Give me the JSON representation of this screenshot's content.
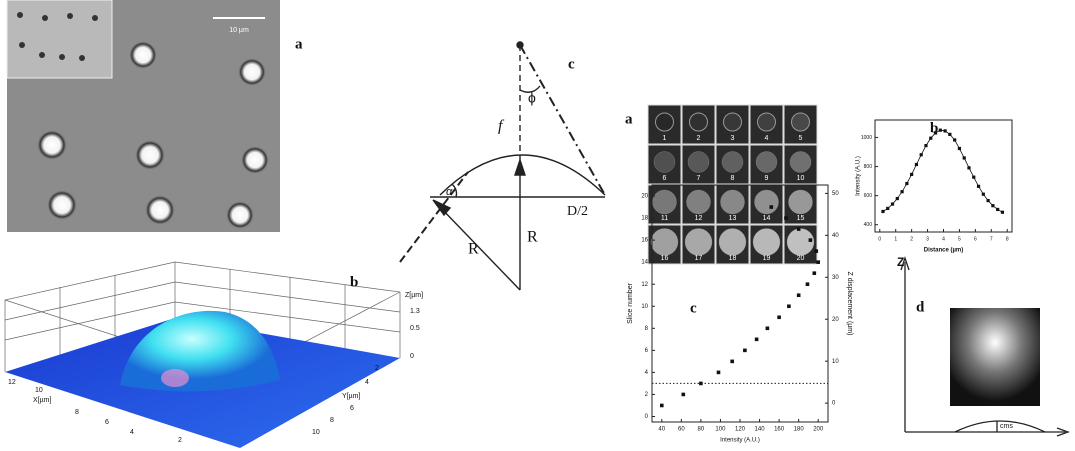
{
  "micrograph": {
    "label": "a",
    "scale_bar": "10 µm"
  },
  "surface_plot": {
    "label": "b",
    "z_axis": "Z[µm]",
    "z_ticks": [
      "1.3",
      "0.5",
      "0"
    ],
    "x_axis": "X[µm]",
    "x_ticks": [
      "12",
      "10",
      "8",
      "6",
      "4",
      "2"
    ],
    "y_axis": "Y[µm]",
    "y_ticks": [
      "2",
      "4",
      "6",
      "8",
      "10"
    ]
  },
  "geometry": {
    "label": "c",
    "phi": "ϕ",
    "focal": "f",
    "alpha": "α",
    "half_diameter": "D/2",
    "radius_left": "R",
    "radius_center": "R"
  },
  "slices": {
    "label": "a",
    "numbers": [
      "1",
      "2",
      "3",
      "4",
      "5",
      "6",
      "7",
      "8",
      "9",
      "10",
      "11",
      "12",
      "13",
      "14",
      "15",
      "16",
      "17",
      "18",
      "19",
      "20"
    ]
  },
  "profile_plot": {
    "type": "scatter",
    "label": "b",
    "xlabel": "Distance (µm)",
    "ylabel": "Intensity (A.U.)",
    "x": [
      0.2,
      0.5,
      0.8,
      1.1,
      1.4,
      1.7,
      2.0,
      2.3,
      2.6,
      2.9,
      3.2,
      3.5,
      3.8,
      4.1,
      4.4,
      4.7,
      5.0,
      5.3,
      5.6,
      5.9,
      6.2,
      6.5,
      6.8,
      7.1,
      7.4,
      7.7
    ],
    "values": [
      491,
      512,
      542,
      580,
      627,
      683,
      746,
      814,
      881,
      944,
      995,
      1031,
      1050,
      1045,
      1021,
      983,
      924,
      859,
      791,
      727,
      664,
      610,
      566,
      531,
      505,
      486
    ],
    "xlim": [
      -0.3,
      8.3
    ],
    "xticks": [
      0,
      1,
      2,
      3,
      4,
      5,
      6,
      7,
      8
    ],
    "ylim": [
      350,
      1120
    ],
    "yticks": [
      400,
      600,
      800,
      1000
    ],
    "color": "#111"
  },
  "slice_plot": {
    "type": "scatter",
    "label": "c",
    "xlabel": "Intensity (A.U.)",
    "ylabel": "Slice number",
    "y2label": "Z displacement (µm)",
    "x": [
      40,
      62,
      80,
      98,
      112,
      125,
      137,
      148,
      160,
      170,
      180,
      189,
      196,
      200,
      198,
      192,
      180,
      167,
      152
    ],
    "values": [
      1,
      2,
      3,
      4,
      5,
      6,
      7,
      8,
      9,
      10,
      11,
      12,
      13,
      14,
      15,
      16,
      17,
      18,
      19
    ],
    "reference_line": 3,
    "xlim": [
      30,
      210
    ],
    "xticks": [
      40,
      60,
      80,
      100,
      120,
      140,
      160,
      180,
      200
    ],
    "ylim": [
      -0.5,
      21
    ],
    "yticks": [
      0,
      2,
      4,
      6,
      8,
      10,
      12,
      14,
      16,
      18,
      20
    ],
    "y2lim": [
      -4.5,
      52
    ],
    "y2ticks": [
      0,
      10,
      20,
      30,
      40,
      50
    ],
    "color": "#111"
  },
  "psf": {
    "label": "d",
    "z_axis": "Z",
    "bump_label": "cms"
  }
}
